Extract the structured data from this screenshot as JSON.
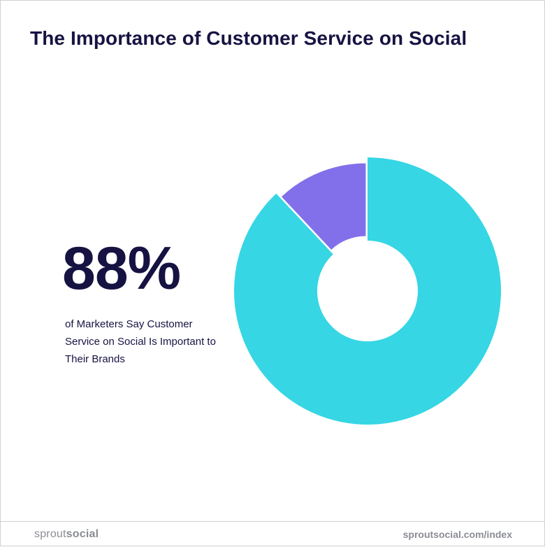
{
  "title": "The Importance of Customer Service on Social",
  "stat": {
    "value": "88%",
    "caption": "of Marketers Say Customer Service on Social Is Important to Their Brands"
  },
  "chart_data": {
    "type": "pie",
    "donut": true,
    "slices": [
      {
        "value": 88,
        "color": "#36d6e4",
        "exploded": false
      },
      {
        "value": 12,
        "color": "#8270ea",
        "exploded": true
      }
    ]
  },
  "footer": {
    "logo_part1": "sprout",
    "logo_part2": "social",
    "url": "sproutsocial.com/index"
  }
}
